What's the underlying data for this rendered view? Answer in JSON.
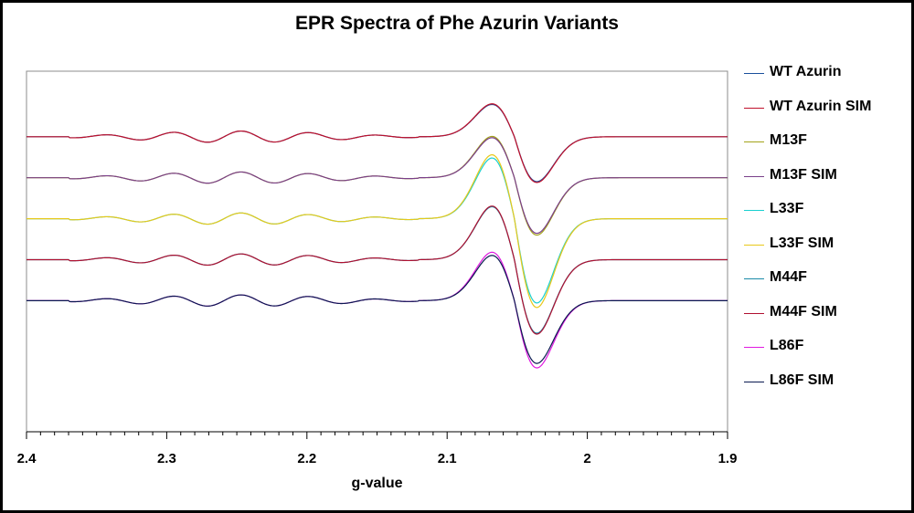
{
  "chart_data": {
    "type": "line",
    "title": "EPR Spectra of Phe Azurin Variants",
    "xlabel": "g-value",
    "ylabel": "",
    "xlim": [
      2.4,
      1.9
    ],
    "x_reversed": true,
    "ylim": [
      -2.6,
      1.8
    ],
    "x_ticks": [
      2.4,
      2.3,
      2.2,
      2.1,
      2.0,
      1.9
    ],
    "x_tick_labels": [
      "2.4",
      "2.3",
      "2.2",
      "2.1",
      "2",
      "1.9"
    ],
    "grid": false,
    "legend_position": "right",
    "series": [
      {
        "name": "WT Azurin",
        "color": "#1a4f9c",
        "offset": 1.0,
        "amp": 1.0
      },
      {
        "name": "WT Azurin SIM",
        "color": "#c0102a",
        "offset": 1.0,
        "amp": 1.02
      },
      {
        "name": "M13F",
        "color": "#a3a31a",
        "offset": 0.5,
        "amp": 1.28
      },
      {
        "name": "M13F SIM",
        "color": "#7a3f8a",
        "offset": 0.5,
        "amp": 1.24
      },
      {
        "name": "L33F",
        "color": "#1ad0d0",
        "offset": 0.0,
        "amp": 1.88
      },
      {
        "name": "L33F SIM",
        "color": "#e8c81a",
        "offset": 0.0,
        "amp": 1.98
      },
      {
        "name": "M44F",
        "color": "#1a8aa8",
        "offset": -0.5,
        "amp": 1.64
      },
      {
        "name": "M44F SIM",
        "color": "#b01030",
        "offset": -0.5,
        "amp": 1.66
      },
      {
        "name": "L86F",
        "color": "#e01ae0",
        "offset": -1.0,
        "amp": 1.5
      },
      {
        "name": "L86F SIM",
        "color": "#0a1a50",
        "offset": -1.0,
        "amp": 1.4
      }
    ]
  }
}
